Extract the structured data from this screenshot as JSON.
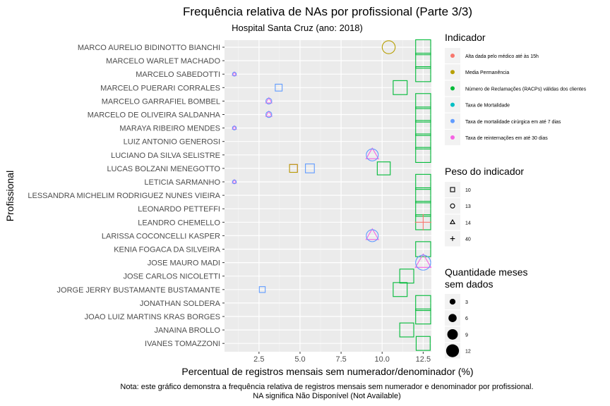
{
  "chart_data": {
    "type": "scatter",
    "title": "Frequência relativa de NAs por profissional (Parte 3/3)",
    "subtitle": "Hospital Santa Cruz (ano: 2018)",
    "xlabel": "Percentual de registros mensais sem numerador/denominador (%)",
    "ylabel": "Profissional",
    "xlim": [
      0.4,
      13.0
    ],
    "xticks": [
      2.5,
      5.0,
      7.5,
      10.0,
      12.5
    ],
    "xtick_labels": [
      "2.5",
      "5.0",
      "7.5",
      "10.0",
      "12.5"
    ],
    "grid": true,
    "categories": [
      "MARCO AURELIO BIDINOTTO BIANCHI",
      "MARCELO WARLET MACHADO",
      "MARCELO SABEDOTTI",
      "MARCELO PUERARI CORRALES",
      "MARCELO GARRAFIEL BOMBEL",
      "MARCELO DE OLIVEIRA SALDANHA",
      "MARAYA RIBEIRO MENDES",
      "LUIZ ANTONIO GENEROSI",
      "LUCIANO DA SILVA SELISTRE",
      "LUCAS BOLZANI MENEGOTTO",
      "LETICIA SARMANHO",
      "LESSANDRA MICHELIM RODRIGUEZ NUNES VIEIRA",
      "LEONARDO PETTEFFI",
      "LEANDRO CHEMELLO",
      "LARISSA COCONCELLI KASPER",
      "KENIA FOGACA DA SILVEIRA",
      "JOSE MAURO MADI",
      "JOSE CARLOS NICOLETTI",
      "JORGE JERRY BUSTAMANTE BUSTAMANTE",
      "JONATHAN SOLDERA",
      "JOAO LUIZ MARTINS KRAS BORGES",
      "JANAINA BROLLO",
      "IVANES TOMAZZONI"
    ],
    "indicators": [
      {
        "name": "Alta dada pelo médico até às 15h",
        "color": "#F8766D"
      },
      {
        "name": "Media Permanência",
        "color": "#B79F00"
      },
      {
        "name": "Número de Reclamações (RACPs) válidas dos clientes",
        "color": "#00BA38"
      },
      {
        "name": "Taxa de Mortalidade",
        "color": "#00BFC4"
      },
      {
        "name": "Taxa de mortalidade cirúrgica em até 7 dias",
        "color": "#619CFF"
      },
      {
        "name": "Taxa de reinternações em até 30 dias",
        "color": "#F564E3"
      }
    ],
    "weights": [
      {
        "label": "10",
        "shape": "square"
      },
      {
        "label": "13",
        "shape": "circle"
      },
      {
        "label": "14",
        "shape": "triangle"
      },
      {
        "label": "40",
        "shape": "plus"
      }
    ],
    "quantities": [
      {
        "label": "3",
        "size": 3
      },
      {
        "label": "6",
        "size": 6
      },
      {
        "label": "9",
        "size": 9
      },
      {
        "label": "12",
        "size": 12
      }
    ],
    "points": [
      {
        "who": "MARCO AURELIO BIDINOTTO BIANCHI",
        "x": 12.5,
        "ind": 2,
        "shape": "square",
        "size": 12
      },
      {
        "who": "MARCO AURELIO BIDINOTTO BIANCHI",
        "x": 10.4,
        "ind": 1,
        "shape": "circle",
        "size": 10
      },
      {
        "who": "MARCELO WARLET MACHADO",
        "x": 12.5,
        "ind": 2,
        "shape": "square",
        "size": 12
      },
      {
        "who": "MARCELO SABEDOTTI",
        "x": 12.5,
        "ind": 2,
        "shape": "square",
        "size": 12
      },
      {
        "who": "MARCELO SABEDOTTI",
        "x": 1.0,
        "ind": 5,
        "shape": "triangle",
        "size": 1
      },
      {
        "who": "MARCELO SABEDOTTI",
        "x": 1.0,
        "ind": 4,
        "shape": "circle",
        "size": 1
      },
      {
        "who": "MARCELO PUERARI CORRALES",
        "x": 11.1,
        "ind": 2,
        "shape": "square",
        "size": 11
      },
      {
        "who": "MARCELO PUERARI CORRALES",
        "x": 3.7,
        "ind": 4,
        "shape": "square",
        "size": 4
      },
      {
        "who": "MARCELO GARRAFIEL BOMBEL",
        "x": 12.5,
        "ind": 2,
        "shape": "square",
        "size": 12
      },
      {
        "who": "MARCELO GARRAFIEL BOMBEL",
        "x": 3.1,
        "ind": 5,
        "shape": "triangle",
        "size": 3
      },
      {
        "who": "MARCELO GARRAFIEL BOMBEL",
        "x": 3.1,
        "ind": 4,
        "shape": "circle",
        "size": 3
      },
      {
        "who": "MARCELO DE OLIVEIRA SALDANHA",
        "x": 12.5,
        "ind": 2,
        "shape": "square",
        "size": 12
      },
      {
        "who": "MARCELO DE OLIVEIRA SALDANHA",
        "x": 3.1,
        "ind": 5,
        "shape": "triangle",
        "size": 3
      },
      {
        "who": "MARCELO DE OLIVEIRA SALDANHA",
        "x": 3.1,
        "ind": 4,
        "shape": "circle",
        "size": 3
      },
      {
        "who": "MARAYA RIBEIRO MENDES",
        "x": 12.5,
        "ind": 2,
        "shape": "square",
        "size": 12
      },
      {
        "who": "MARAYA RIBEIRO MENDES",
        "x": 1.0,
        "ind": 5,
        "shape": "triangle",
        "size": 1
      },
      {
        "who": "MARAYA RIBEIRO MENDES",
        "x": 1.0,
        "ind": 4,
        "shape": "circle",
        "size": 1
      },
      {
        "who": "LUIZ ANTONIO GENEROSI",
        "x": 12.5,
        "ind": 2,
        "shape": "square",
        "size": 12
      },
      {
        "who": "LUCIANO DA SILVA SELISTRE",
        "x": 12.5,
        "ind": 2,
        "shape": "square",
        "size": 12
      },
      {
        "who": "LUCIANO DA SILVA SELISTRE",
        "x": 9.4,
        "ind": 5,
        "shape": "triangle",
        "size": 9
      },
      {
        "who": "LUCIANO DA SILVA SELISTRE",
        "x": 9.4,
        "ind": 4,
        "shape": "circle",
        "size": 9
      },
      {
        "who": "LUCAS BOLZANI MENEGOTTO",
        "x": 10.1,
        "ind": 2,
        "shape": "square",
        "size": 10
      },
      {
        "who": "LUCAS BOLZANI MENEGOTTO",
        "x": 5.6,
        "ind": 4,
        "shape": "square",
        "size": 6
      },
      {
        "who": "LUCAS BOLZANI MENEGOTTO",
        "x": 4.6,
        "ind": 5,
        "shape": "square",
        "size": 5
      },
      {
        "who": "LUCAS BOLZANI MENEGOTTO",
        "x": 4.6,
        "ind": 1,
        "shape": "square",
        "size": 5
      },
      {
        "who": "LETICIA SARMANHO",
        "x": 12.5,
        "ind": 2,
        "shape": "square",
        "size": 12
      },
      {
        "who": "LETICIA SARMANHO",
        "x": 1.0,
        "ind": 5,
        "shape": "triangle",
        "size": 1
      },
      {
        "who": "LETICIA SARMANHO",
        "x": 1.0,
        "ind": 4,
        "shape": "circle",
        "size": 1
      },
      {
        "who": "LESSANDRA MICHELIM RODRIGUEZ NUNES VIEIRA",
        "x": 12.5,
        "ind": 2,
        "shape": "square",
        "size": 12
      },
      {
        "who": "LEONARDO PETTEFFI",
        "x": 12.5,
        "ind": 2,
        "shape": "square",
        "size": 12
      },
      {
        "who": "LEANDRO CHEMELLO",
        "x": 12.5,
        "ind": 2,
        "shape": "square",
        "size": 12
      },
      {
        "who": "LEANDRO CHEMELLO",
        "x": 12.5,
        "ind": 0,
        "shape": "plus",
        "size": 12
      },
      {
        "who": "LARISSA COCONCELLI KASPER",
        "x": 9.4,
        "ind": 5,
        "shape": "triangle",
        "size": 9
      },
      {
        "who": "LARISSA COCONCELLI KASPER",
        "x": 9.4,
        "ind": 4,
        "shape": "circle",
        "size": 9
      },
      {
        "who": "KENIA FOGACA DA SILVEIRA",
        "x": 12.5,
        "ind": 2,
        "shape": "square",
        "size": 12
      },
      {
        "who": "JOSE MAURO MADI",
        "x": 12.5,
        "ind": 5,
        "shape": "triangle",
        "size": 12
      },
      {
        "who": "JOSE MAURO MADI",
        "x": 12.5,
        "ind": 4,
        "shape": "circle",
        "size": 12
      },
      {
        "who": "JOSE CARLOS NICOLETTI",
        "x": 11.5,
        "ind": 2,
        "shape": "square",
        "size": 11
      },
      {
        "who": "JORGE JERRY BUSTAMANTE BUSTAMANTE",
        "x": 11.1,
        "ind": 2,
        "shape": "square",
        "size": 11
      },
      {
        "who": "JORGE JERRY BUSTAMANTE BUSTAMANTE",
        "x": 2.7,
        "ind": 4,
        "shape": "square",
        "size": 3
      },
      {
        "who": "JONATHAN SOLDERA",
        "x": 12.5,
        "ind": 2,
        "shape": "square",
        "size": 12
      },
      {
        "who": "JOAO LUIZ MARTINS KRAS BORGES",
        "x": 12.5,
        "ind": 2,
        "shape": "square",
        "size": 12
      },
      {
        "who": "JANAINA BROLLO",
        "x": 11.5,
        "ind": 2,
        "shape": "square",
        "size": 11
      },
      {
        "who": "IVANES TOMAZZONI",
        "x": 12.5,
        "ind": 2,
        "shape": "square",
        "size": 11
      }
    ]
  },
  "legend": {
    "indicator_title": "Indicador",
    "weight_title": "Peso do indicador",
    "quantity_title_line1": "Quantidade meses",
    "quantity_title_line2": "sem dados"
  },
  "caption": {
    "line1": "Nota: este gráfico demonstra a frequência relativa de registros mensais sem numerador e denominador por profissional.",
    "line2": "NA significa Não Disponível (Not Available)"
  }
}
